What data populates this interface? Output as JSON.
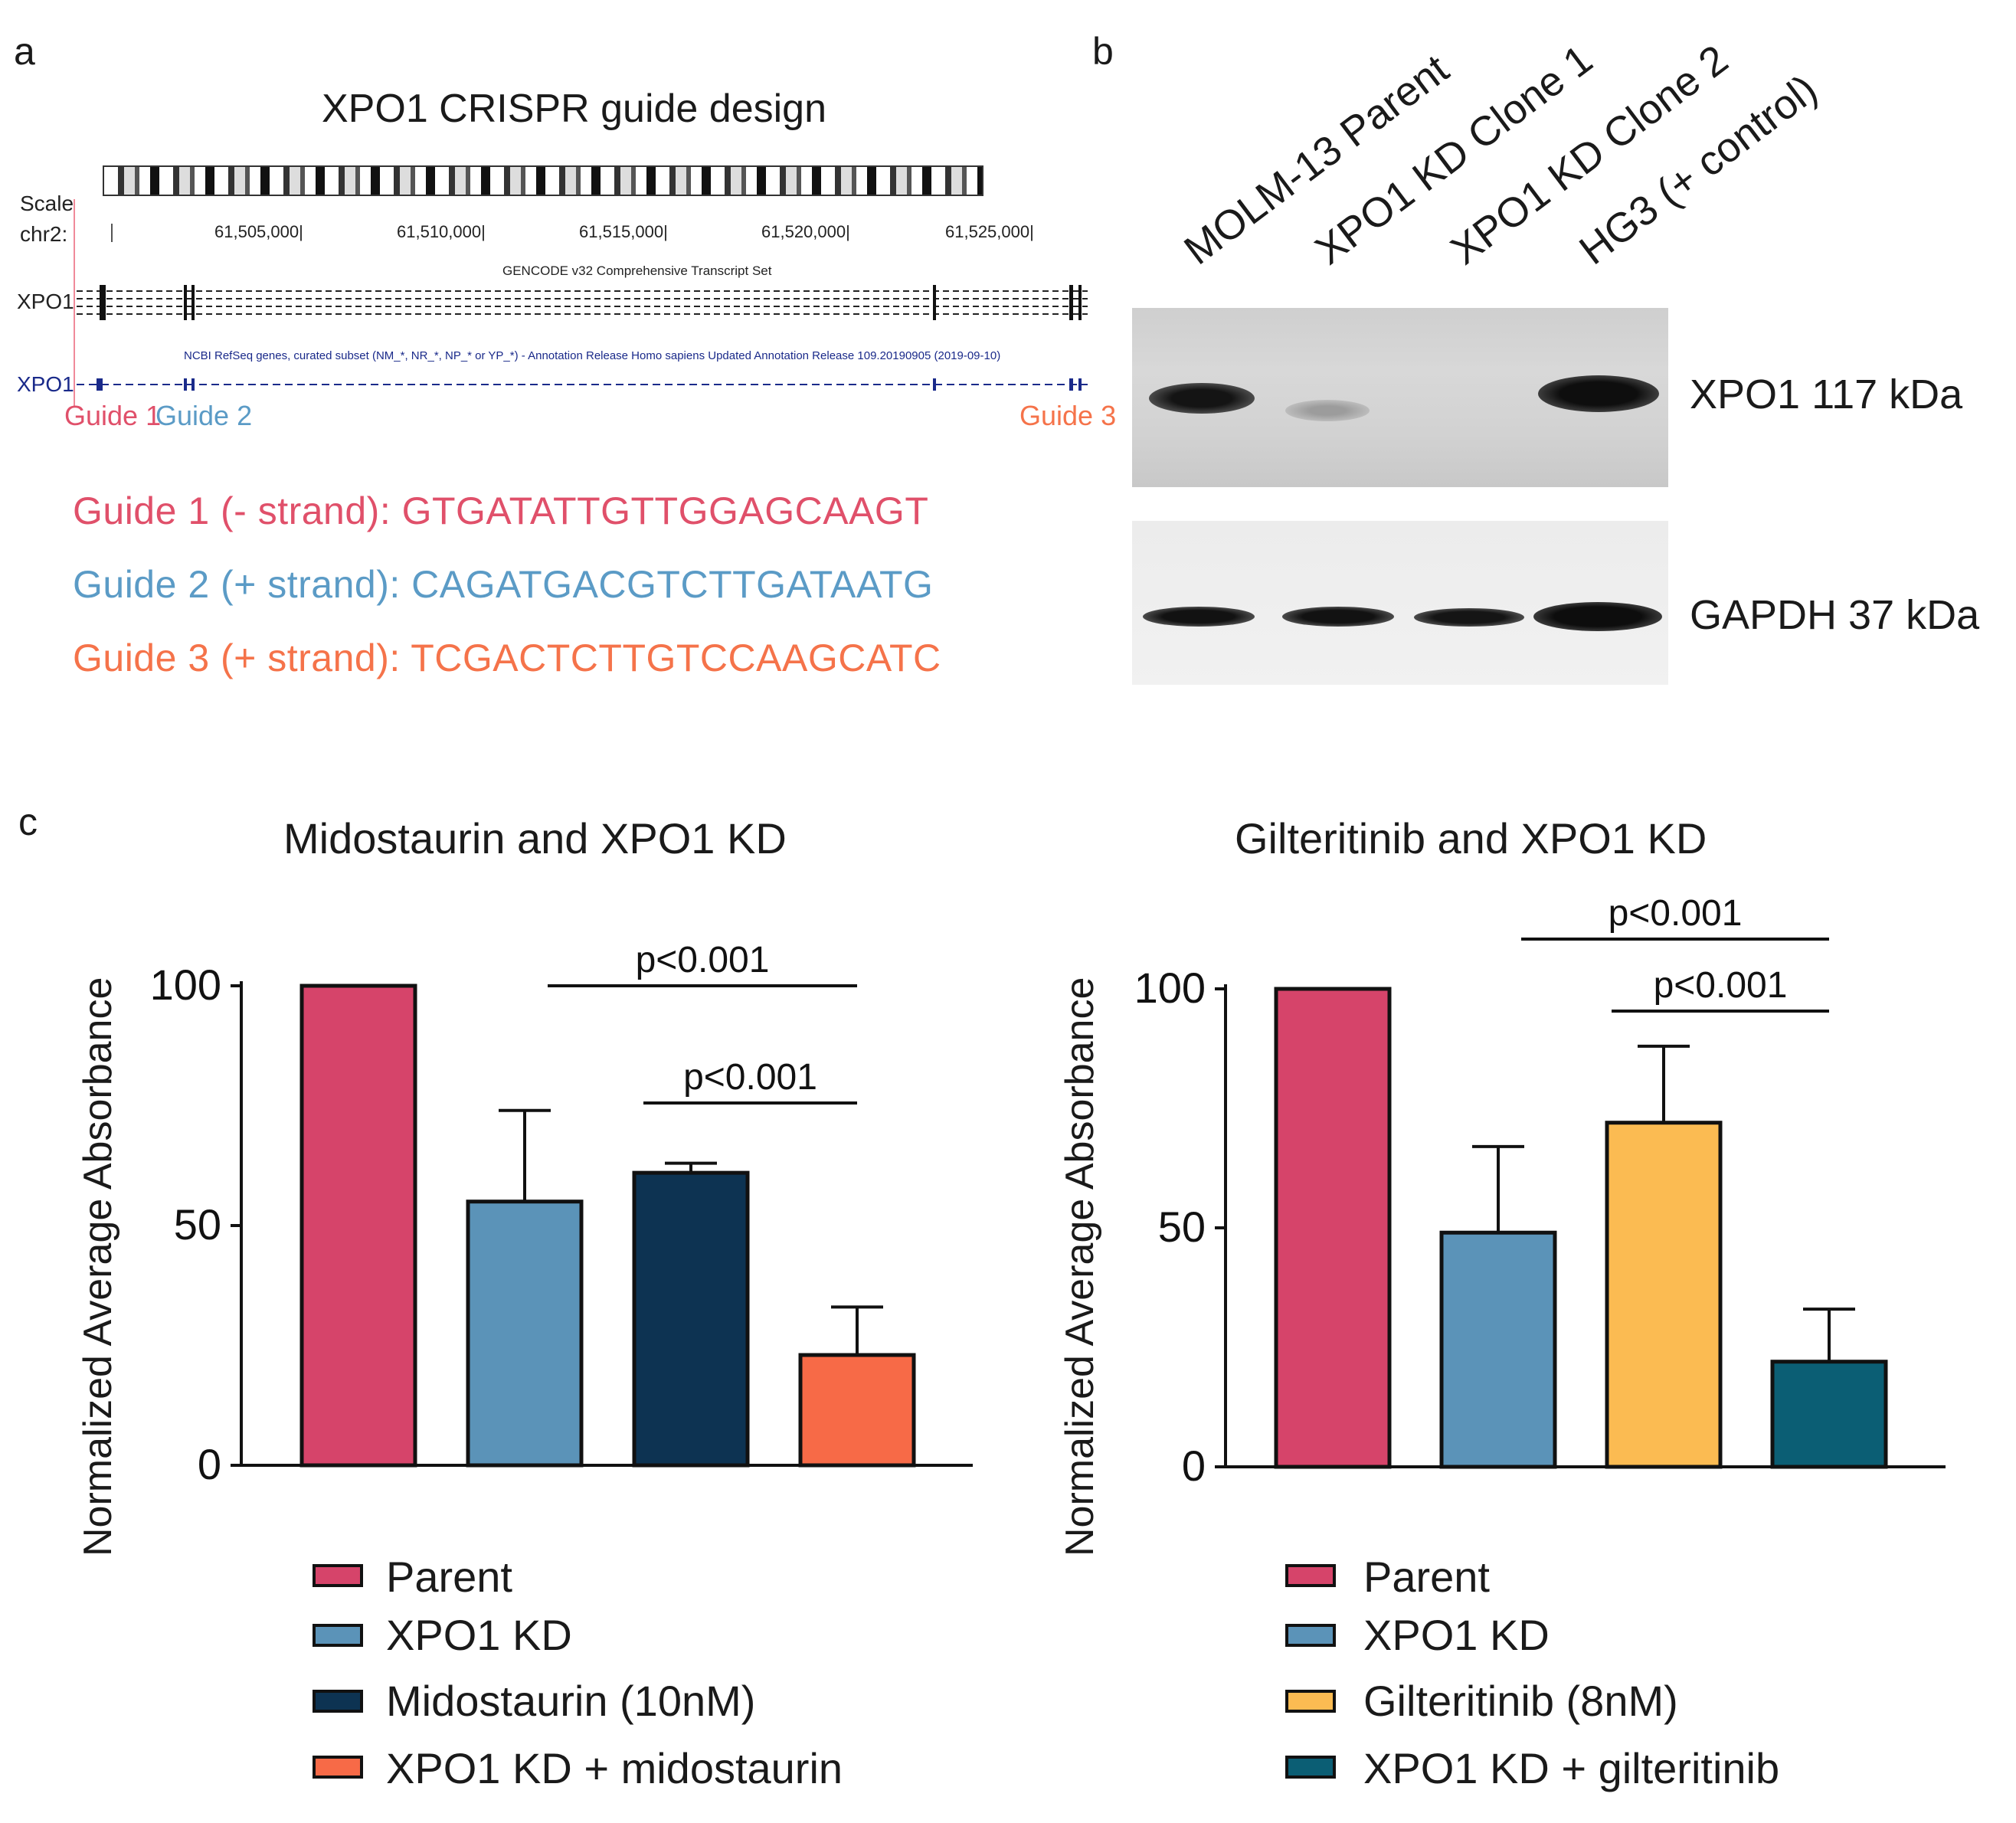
{
  "panel_a": {
    "letter": "a",
    "title": "XPO1 CRISPR guide design",
    "scale_label": "Scale",
    "chr_label": "chr2:",
    "positions": [
      "61,505,000|",
      "61,510,000|",
      "61,515,000|",
      "61,520,000|",
      "61,525,000|"
    ],
    "gencode_label": "GENCODE v32 Comprehensive Transcript Set",
    "track1_label": "XPO1",
    "refseq_label": "NCBI RefSeq genes, curated subset (NM_*, NR_*, NP_* or YP_*) - Annotation Release Homo sapiens Updated Annotation Release 109.20190905 (2019-09-10)",
    "track2_label": "XPO1",
    "guide_markers": [
      "Guide 1",
      "Guide 2",
      "Guide 3"
    ],
    "guides": [
      {
        "label": "Guide 1 (- strand): GTGATATTGTTGGAGCAAGT",
        "color": "#e0506a"
      },
      {
        "label": "Guide 2 (+ strand): CAGATGACGTCTTGATAATG",
        "color": "#5b9bc6"
      },
      {
        "label": "Guide 3 (+ strand): TCGACTCTTGTCCAAGCATC",
        "color": "#f5734a"
      }
    ]
  },
  "panel_b": {
    "letter": "b",
    "lanes": [
      "MOLM-13 Parent",
      "XPO1 KD Clone 1",
      "XPO1 KD Clone 2",
      "HG3 (+ control)"
    ],
    "bands": [
      "XPO1 117 kDa",
      "GAPDH 37 kDa"
    ]
  },
  "panel_c": {
    "letter": "c",
    "colors": {
      "parent": "#d6446a",
      "xpo1kd": "#5b93b8",
      "midostaurin": "#0d3352",
      "combo_mido": "#f76a47",
      "gilteritinib": "#fbbb52",
      "combo_gilt": "#0b5e74"
    }
  },
  "chart_data": [
    {
      "type": "bar",
      "title": "Midostaurin and XPO1 KD",
      "ylabel": "Normalized Average Absorbance",
      "xlabel": "",
      "ylim": [
        0,
        100
      ],
      "yticks": [
        "0",
        "50",
        "100"
      ],
      "categories": [
        "Parent",
        "XPO1 KD",
        "Midostaurin (10nM)",
        "XPO1 KD + midostaurin"
      ],
      "values": [
        100,
        55,
        61,
        23
      ],
      "errors": [
        0,
        19,
        2,
        10
      ],
      "colors": [
        "#d6446a",
        "#5b93b8",
        "#0d3352",
        "#f76a47"
      ],
      "legend": [
        "Parent",
        "XPO1 KD",
        "Midostaurin (10nM)",
        "XPO1 KD + midostaurin"
      ],
      "annotations": [
        {
          "text": "p<0.001",
          "from": 1,
          "to": 3
        },
        {
          "text": "p<0.001",
          "from": 2,
          "to": 3
        }
      ]
    },
    {
      "type": "bar",
      "title": "Gilteritinib and XPO1 KD",
      "ylabel": "Normalized Average Absorbance",
      "xlabel": "",
      "ylim": [
        0,
        100
      ],
      "yticks": [
        "0",
        "50",
        "100"
      ],
      "categories": [
        "Parent",
        "XPO1 KD",
        "Gilteritinib (8nM)",
        "XPO1 KD + gilteritinib"
      ],
      "values": [
        100,
        49,
        72,
        22
      ],
      "errors": [
        0,
        18,
        16,
        11
      ],
      "colors": [
        "#d6446a",
        "#5b93b8",
        "#fbbb52",
        "#0b5e74"
      ],
      "legend": [
        "Parent",
        "XPO1 KD",
        "Gilteritinib (8nM)",
        "XPO1 KD + gilteritinib"
      ],
      "annotations": [
        {
          "text": "p<0.001",
          "from": 1,
          "to": 3
        },
        {
          "text": "p<0.001",
          "from": 2,
          "to": 3
        }
      ]
    }
  ]
}
